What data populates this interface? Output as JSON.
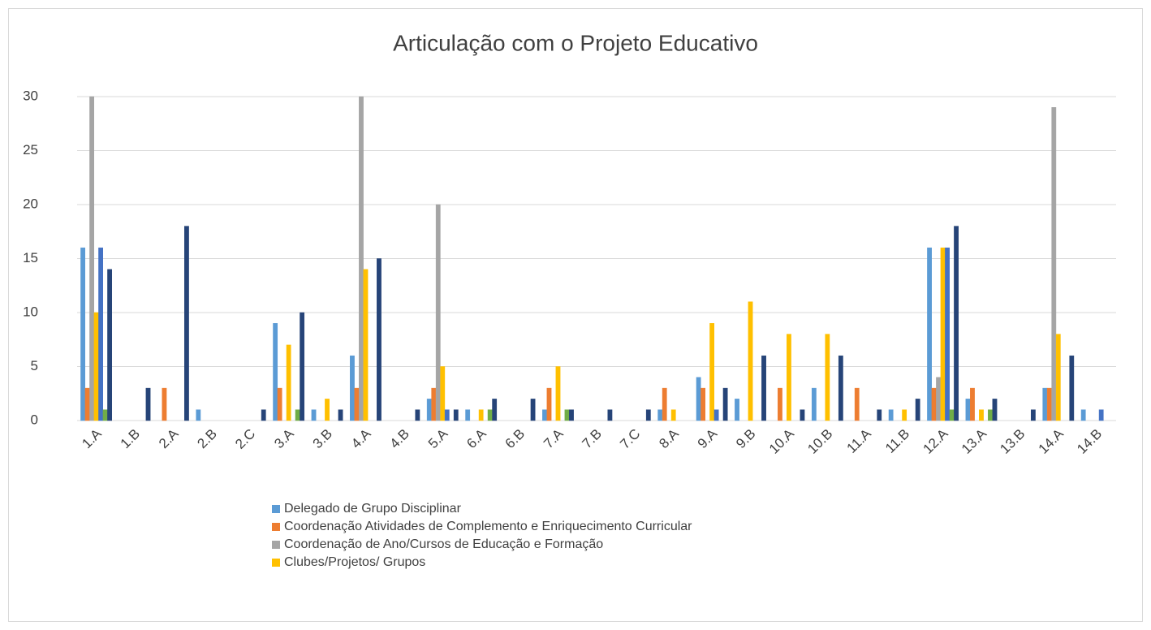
{
  "chart_data": {
    "type": "bar",
    "title": "Articulação com o Projeto Educativo",
    "categories": [
      "1.A",
      "1.B",
      "2.A",
      "2.B",
      "2.C",
      "3.A",
      "3.B",
      "4.A",
      "4.B",
      "5.A",
      "6.A",
      "6.B",
      "7.A",
      "7.B",
      "7.C",
      "8.A",
      "9.A",
      "9.B",
      "10.A",
      "10.B",
      "11.A",
      "11.B",
      "12.A",
      "13.A",
      "13.B",
      "14.A",
      "14.B"
    ],
    "series": [
      {
        "name": "Delegado de Grupo Disciplinar",
        "color": "#5b9bd5",
        "values": [
          16,
          0,
          0,
          1,
          0,
          9,
          1,
          6,
          0,
          2,
          1,
          0,
          1,
          0,
          0,
          1,
          4,
          2,
          0,
          3,
          0,
          1,
          16,
          2,
          0,
          3,
          1
        ]
      },
      {
        "name": "Coordenação Atividades de Complemento e Enriquecimento Curricular",
        "color": "#ed7d31",
        "values": [
          3,
          0,
          3,
          0,
          0,
          3,
          0,
          3,
          0,
          3,
          0,
          0,
          3,
          0,
          0,
          3,
          3,
          0,
          3,
          0,
          3,
          0,
          3,
          3,
          0,
          3,
          0
        ]
      },
      {
        "name": "Coordenação de Ano/Cursos de Educação e Formação",
        "color": "#a5a5a5",
        "values": [
          30,
          0,
          0,
          0,
          0,
          0,
          0,
          30,
          0,
          20,
          0,
          0,
          0,
          0,
          0,
          0,
          0,
          0,
          0,
          0,
          0,
          0,
          4,
          0,
          0,
          29,
          0
        ]
      },
      {
        "name": "Clubes/Projetos/ Grupos",
        "color": "#ffc000",
        "values": [
          10,
          0,
          0,
          0,
          0,
          7,
          2,
          14,
          0,
          5,
          1,
          0,
          5,
          0,
          0,
          1,
          9,
          11,
          8,
          8,
          0,
          1,
          16,
          1,
          0,
          8,
          0
        ]
      },
      {
        "color": "#4472c4",
        "values": [
          16,
          0,
          0,
          0,
          0,
          0,
          0,
          0,
          0,
          1,
          0,
          0,
          0,
          0,
          0,
          0,
          1,
          0,
          0,
          0,
          0,
          0,
          16,
          0,
          0,
          0,
          1
        ]
      },
      {
        "color": "#70ad47",
        "values": [
          1,
          0,
          0,
          0,
          0,
          1,
          0,
          0,
          0,
          0,
          1,
          0,
          1,
          0,
          0,
          0,
          0,
          0,
          0,
          0,
          0,
          0,
          1,
          1,
          0,
          0,
          0
        ]
      },
      {
        "color": "#264478",
        "values": [
          14,
          3,
          18,
          0,
          1,
          10,
          1,
          15,
          1,
          1,
          2,
          2,
          1,
          1,
          1,
          0,
          3,
          6,
          1,
          6,
          1,
          2,
          18,
          2,
          1,
          6,
          0
        ]
      }
    ],
    "ylim": [
      0,
      30
    ],
    "yticks": [
      0,
      5,
      10,
      15,
      20,
      25,
      30
    ],
    "grid": true
  }
}
